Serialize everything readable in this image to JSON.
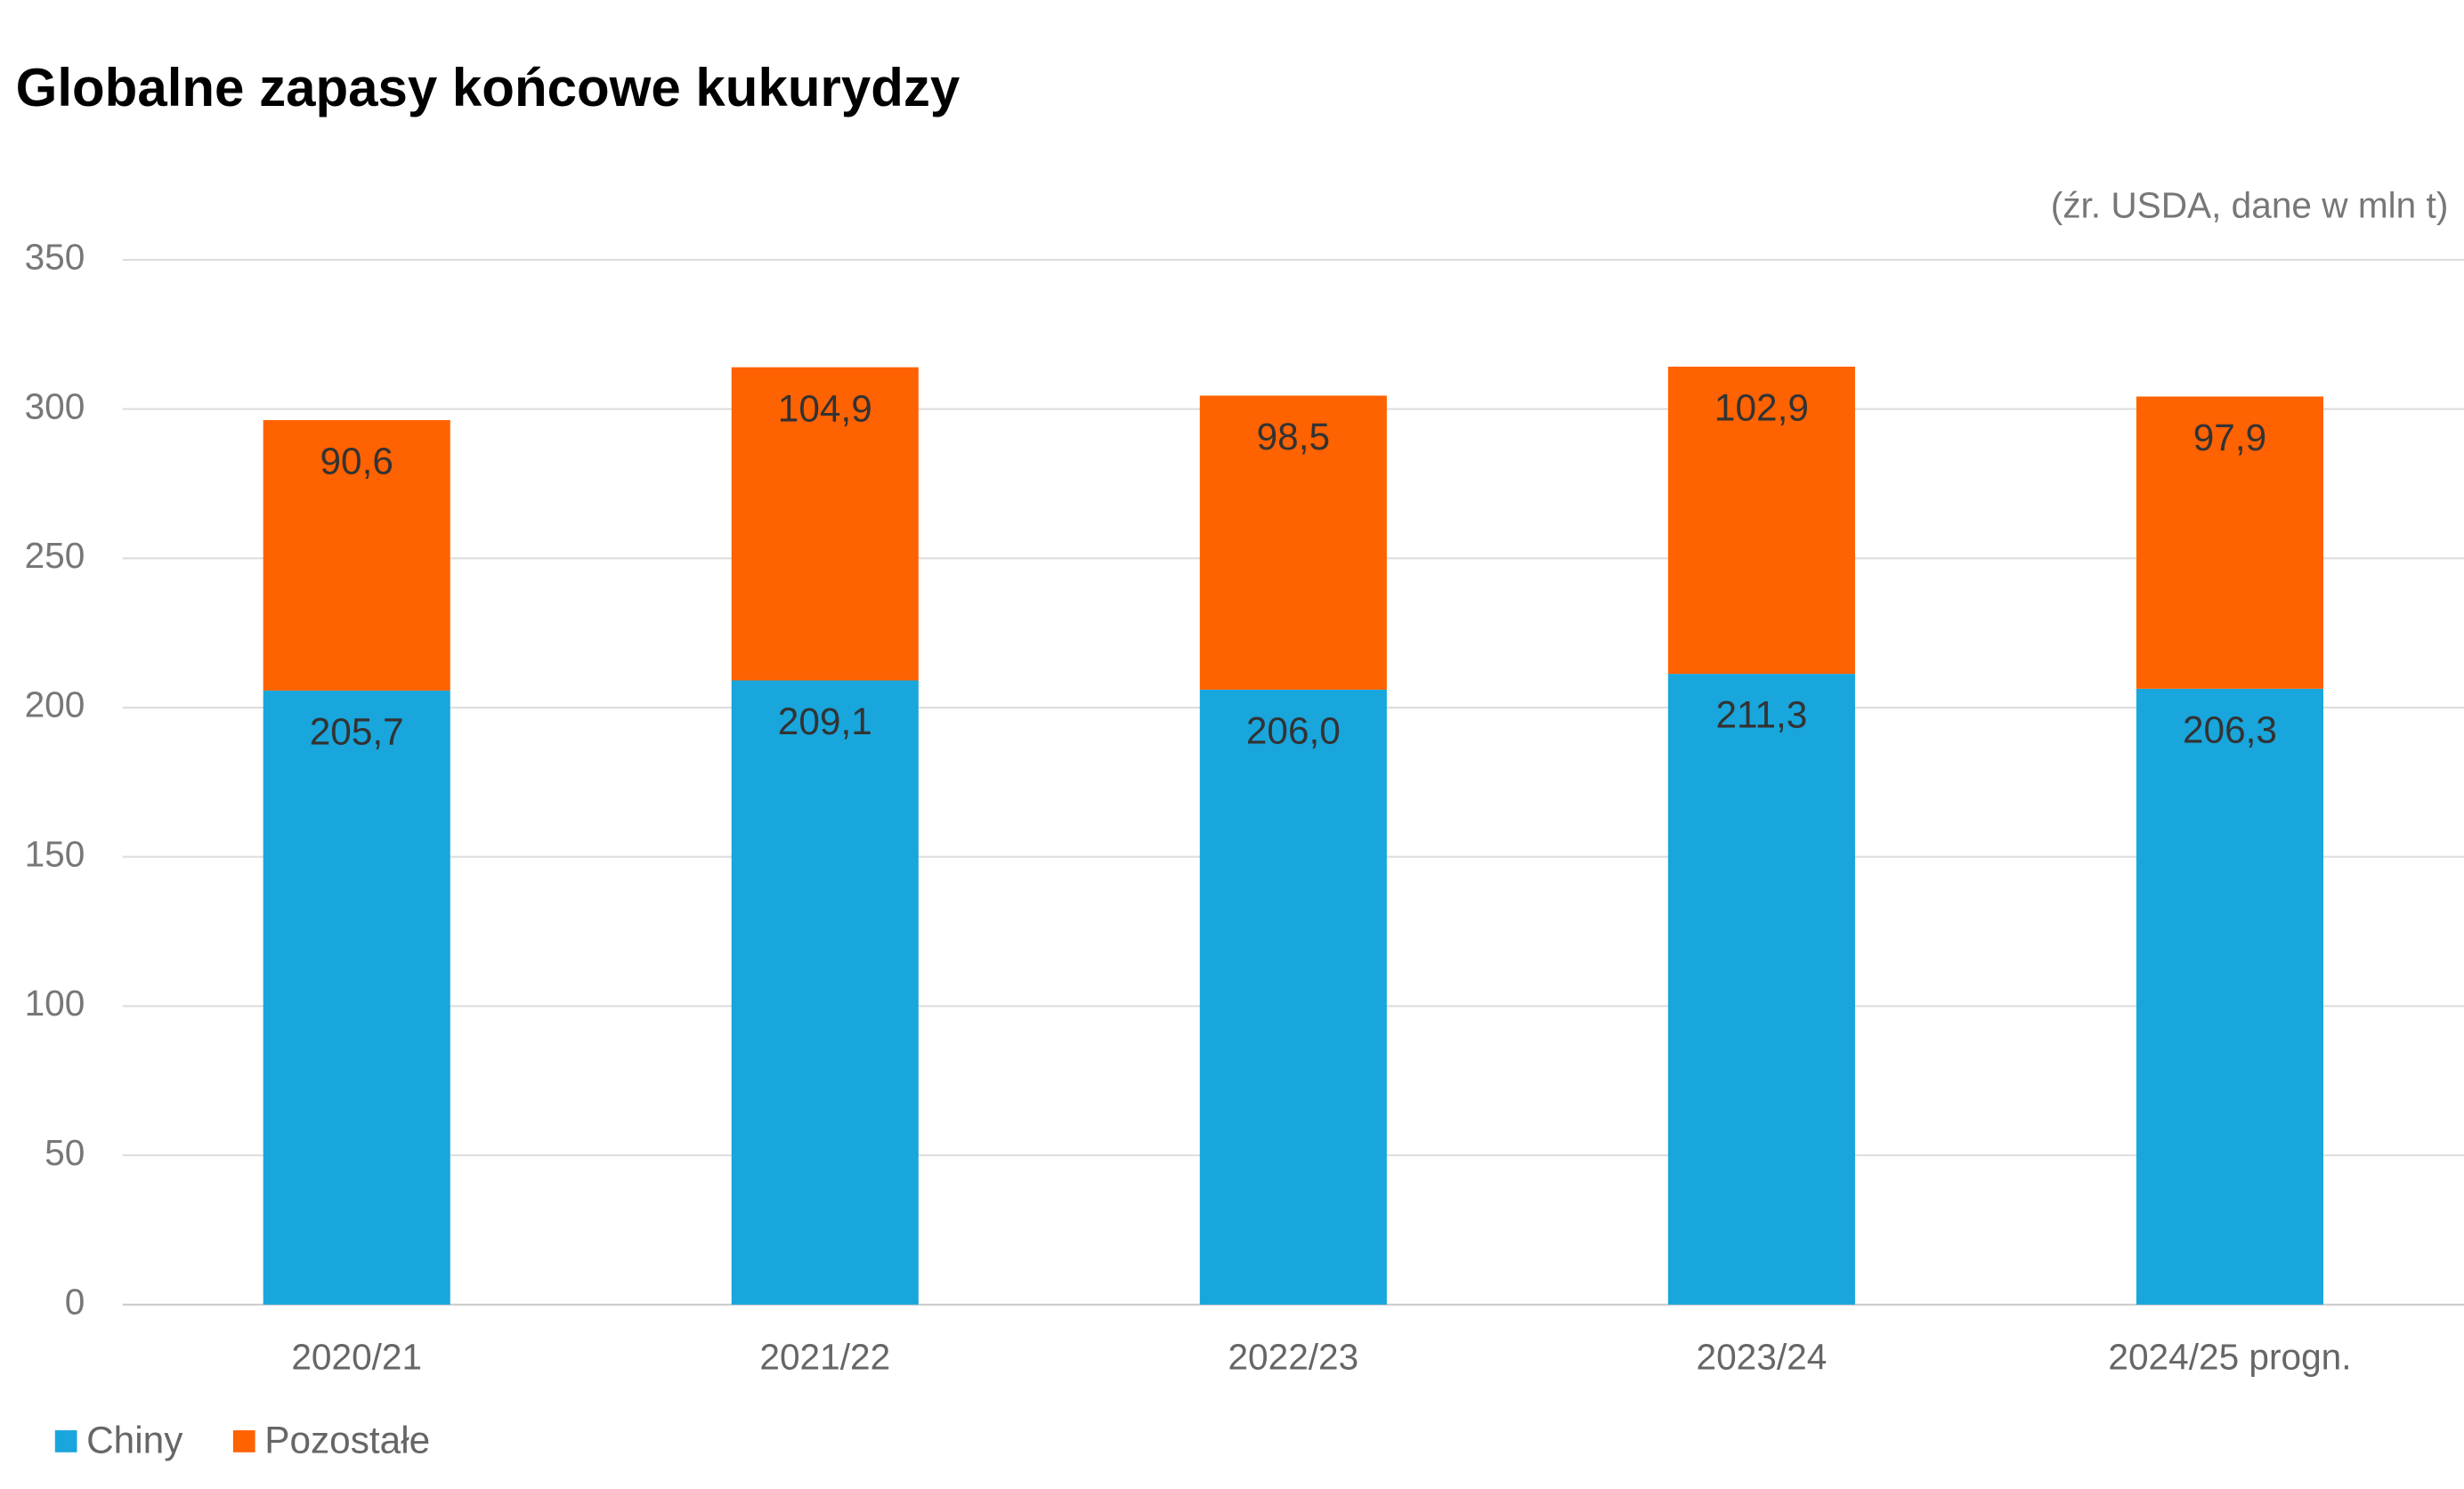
{
  "chart_data": {
    "type": "stacked-bar",
    "title": "Globalne zapasy końcowe kukurydzy",
    "subtitle": "(źr. USDA, dane w mln t)",
    "categories": [
      "2020/21",
      "2021/22",
      "2022/23",
      "2023/24",
      "2024/25 progn."
    ],
    "series": [
      {
        "name": "Chiny",
        "color": "#18a6dc",
        "values": [
          205.7,
          209.1,
          206.0,
          211.3,
          206.3
        ],
        "value_labels": [
          "205,7",
          "209,1",
          "206,0",
          "211,3",
          "206,3"
        ]
      },
      {
        "name": "Pozostałe",
        "color": "#ff6200",
        "values": [
          90.6,
          104.9,
          98.5,
          102.9,
          97.9
        ],
        "value_labels": [
          "90,6",
          "104,9",
          "98,5",
          "102,9",
          "97,9"
        ]
      }
    ],
    "ylim": [
      0,
      350
    ],
    "yticks": [
      0,
      50,
      100,
      150,
      200,
      250,
      300,
      350
    ],
    "grid": true,
    "legend": "bottom-left"
  }
}
